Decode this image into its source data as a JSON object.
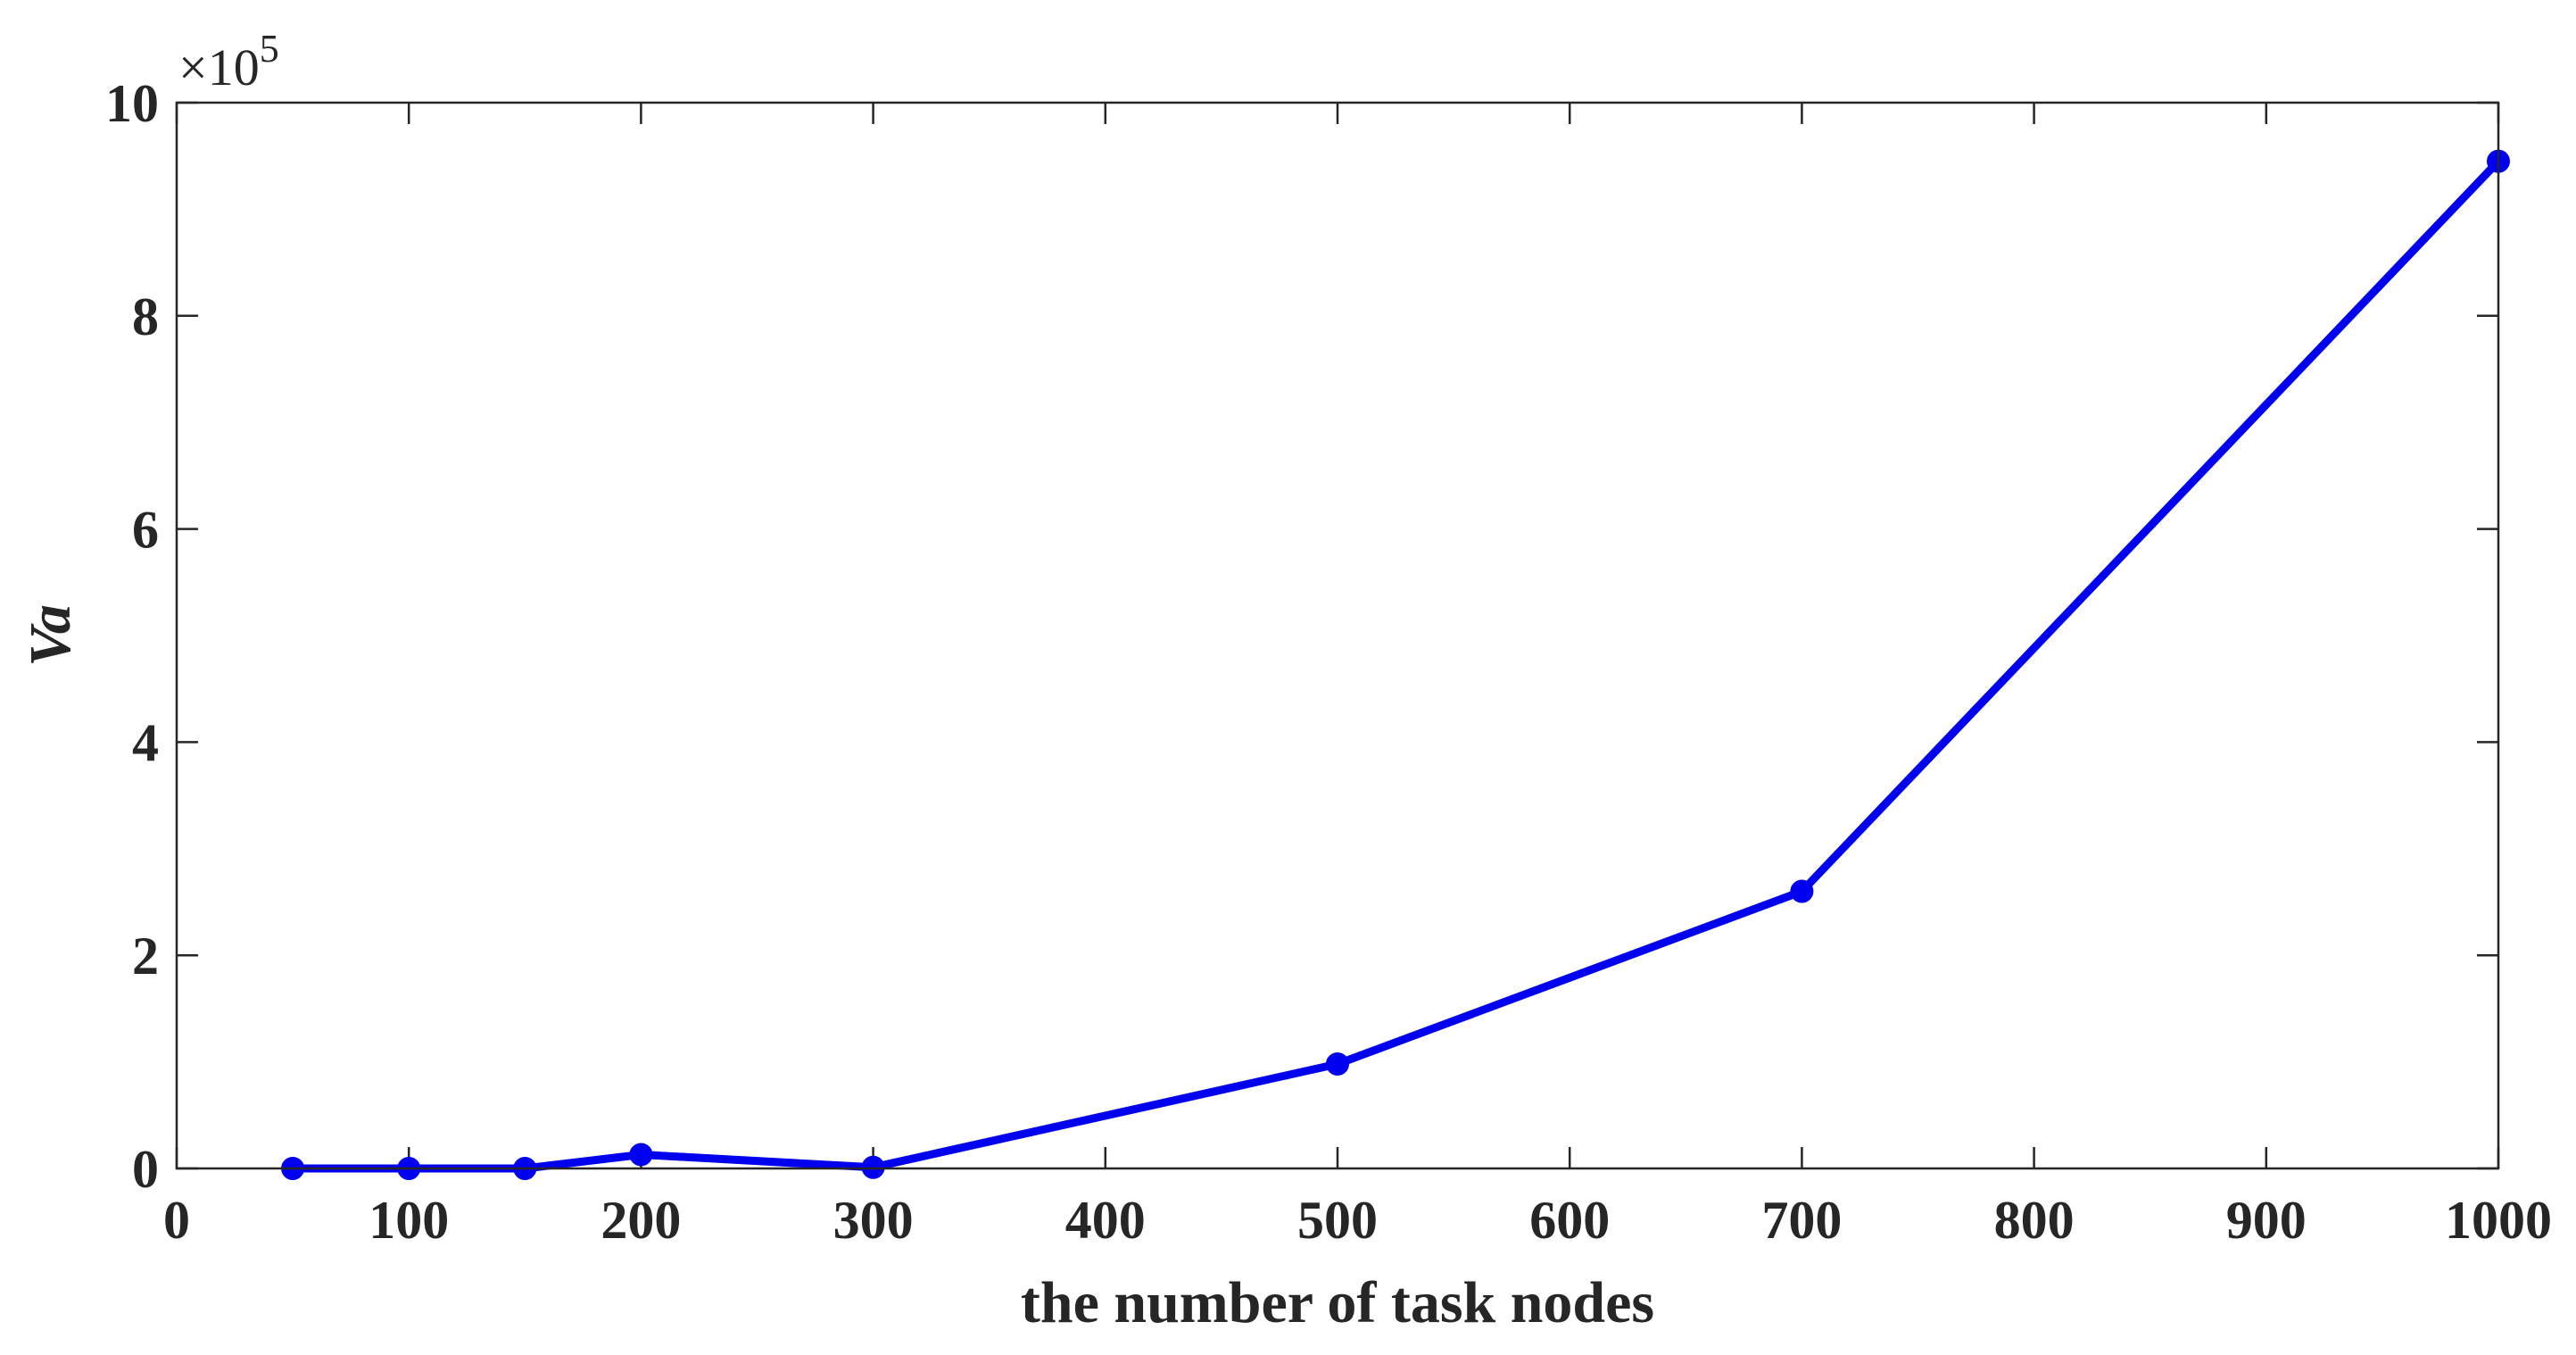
{
  "chart_data": {
    "type": "line",
    "xlabel": "the number of task nodes",
    "ylabel": "Va",
    "xlim": [
      0,
      1000
    ],
    "ylim": [
      0,
      1000000
    ],
    "x_ticks": [
      0,
      100,
      200,
      300,
      400,
      500,
      600,
      700,
      800,
      900,
      1000
    ],
    "x_tick_labels": [
      "0",
      "100",
      "200",
      "300",
      "400",
      "500",
      "600",
      "700",
      "800",
      "900",
      "1000"
    ],
    "y_ticks": [
      0,
      200000,
      400000,
      600000,
      800000,
      1000000
    ],
    "y_tick_labels": [
      "0",
      "2",
      "4",
      "6",
      "8",
      "10"
    ],
    "y_exponent_label": "×10",
    "y_exponent_power": "5",
    "grid": false,
    "series": [
      {
        "x": [
          50,
          100,
          150,
          200,
          300,
          500,
          700,
          1000
        ],
        "y": [
          0,
          0,
          0,
          13000,
          1000,
          98000,
          260000,
          945000
        ],
        "color": "#0000ee",
        "marker": "circle"
      }
    ]
  }
}
